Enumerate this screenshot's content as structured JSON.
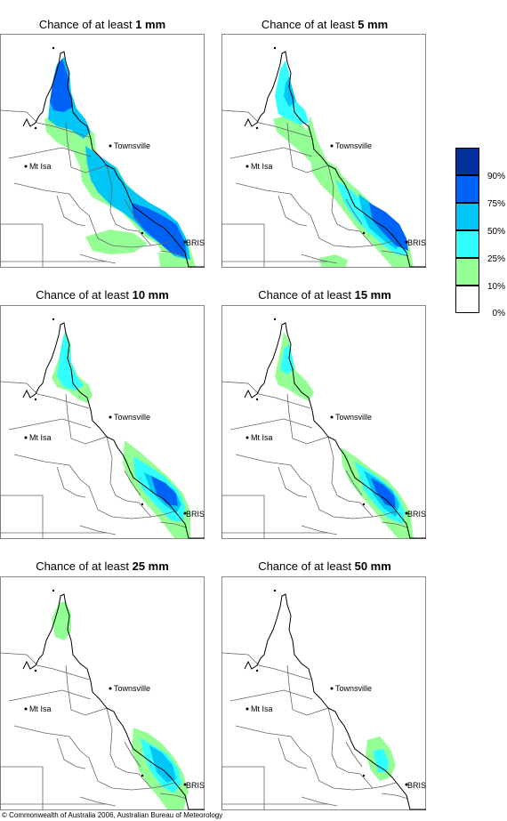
{
  "panels": [
    {
      "prefix": "Chance of at least ",
      "amount": "1 mm"
    },
    {
      "prefix": "Chance of at least ",
      "amount": "5 mm"
    },
    {
      "prefix": "Chance of at least ",
      "amount": "10 mm"
    },
    {
      "prefix": "Chance of at least ",
      "amount": "15 mm"
    },
    {
      "prefix": "Chance of at least ",
      "amount": "25 mm"
    },
    {
      "prefix": "Chance of at least ",
      "amount": "50 mm"
    }
  ],
  "map_labels": {
    "townsville": "Townsville",
    "mtisa": "Mt Isa",
    "bris": "BRIS"
  },
  "legend": {
    "labels": [
      "90%",
      "75%",
      "50%",
      "25%",
      "10%",
      "0%"
    ],
    "colors": [
      "#00319c",
      "#0063f7",
      "#00c6f7",
      "#31ffff",
      "#94ff94",
      "#ffffff"
    ]
  },
  "copyright": "© Commonwealth of Australia 2006, Australian Bureau of Meteorology"
}
